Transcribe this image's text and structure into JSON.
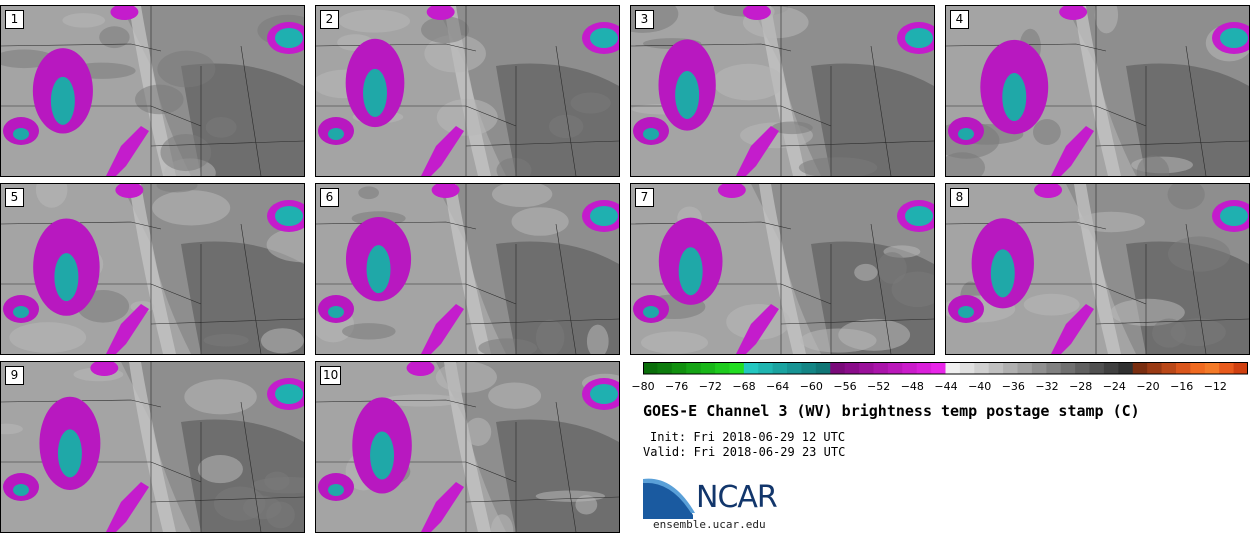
{
  "members": [
    "1",
    "2",
    "3",
    "4",
    "5",
    "6",
    "7",
    "8",
    "9",
    "10"
  ],
  "colorbar": {
    "ticks": [
      "−80",
      "−76",
      "−72",
      "−68",
      "−64",
      "−60",
      "−56",
      "−52",
      "−48",
      "−44",
      "−40",
      "−36",
      "−32",
      "−28",
      "−24",
      "−20",
      "−16",
      "−12"
    ],
    "colors": [
      "#0a6e0a",
      "#0d7c0d",
      "#11900f",
      "#15a315",
      "#19b719",
      "#1ecb1e",
      "#22dd22",
      "#23c7c0",
      "#1fb5b0",
      "#1aa3a0",
      "#179494",
      "#138585",
      "#107676",
      "#7a0a7a",
      "#8a0c8a",
      "#9a109a",
      "#aa14aa",
      "#ba18ba",
      "#ca1cca",
      "#da20da",
      "#e826e8",
      "#f0f0f0",
      "#e0e0e0",
      "#d0d0d0",
      "#c0c0c0",
      "#b0b0b0",
      "#a0a0a0",
      "#909090",
      "#808080",
      "#707070",
      "#606060",
      "#505050",
      "#404040",
      "#303030",
      "#7a2e10",
      "#9a3a14",
      "#ba4818",
      "#da561c",
      "#f06a20",
      "#f47a28",
      "#e85a1c",
      "#d04010"
    ]
  },
  "title": "GOES-E Channel 3 (WV) brightness temp postage stamp (C)",
  "init": "Init: Fri 2018-06-29 12 UTC",
  "valid": "Valid: Fri 2018-06-29 23 UTC",
  "logo": {
    "text": "NCAR",
    "url": "ensemble.ucar.edu"
  }
}
